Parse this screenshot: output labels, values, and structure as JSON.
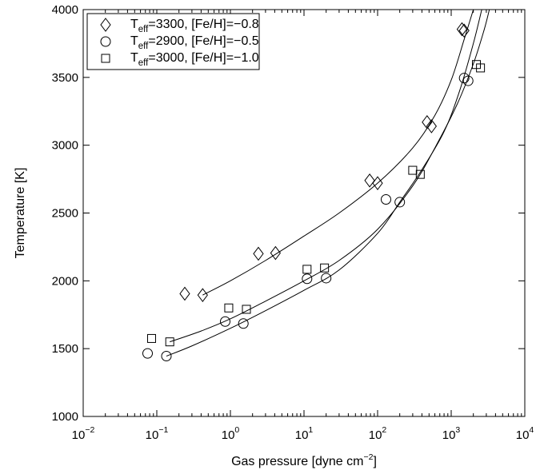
{
  "chart_data": {
    "type": "scatter",
    "xlabel": "Gas pressure [dyne cm−2]",
    "xlabel_parts": {
      "main": "Gas pressure [dyne cm",
      "exponent": "−2",
      "close": "]"
    },
    "ylabel": "Temperature [K]",
    "x_scale": "log",
    "xlim": [
      0.01,
      10000
    ],
    "ylim": [
      1000,
      4000
    ],
    "x_tick_values": [
      0.01,
      0.1,
      1,
      10,
      100,
      1000,
      10000
    ],
    "x_tick_labels": [
      {
        "base": "10",
        "exp": "−2"
      },
      {
        "base": "10",
        "exp": "−1"
      },
      {
        "base": "10",
        "exp": "0"
      },
      {
        "base": "10",
        "exp": "1"
      },
      {
        "base": "10",
        "exp": "2"
      },
      {
        "base": "10",
        "exp": "3"
      },
      {
        "base": "10",
        "exp": "4"
      }
    ],
    "y_ticks": [
      1000,
      1500,
      2000,
      2500,
      3000,
      3500,
      4000
    ],
    "grid": false,
    "legend_position": "top-left",
    "series": [
      {
        "legend": {
          "t": "T",
          "sub": "eff",
          "rest": "=3300, [Fe/H]=−0.8"
        },
        "marker": "diamond",
        "points": [
          [
            0.24,
            1905
          ],
          [
            0.42,
            1895
          ],
          [
            2.4,
            2200
          ],
          [
            4.1,
            2205
          ],
          [
            78,
            2740
          ],
          [
            100,
            2720
          ],
          [
            470,
            3170
          ],
          [
            540,
            3140
          ],
          [
            1400,
            3855
          ],
          [
            1500,
            3845
          ]
        ],
        "curve": [
          [
            0.42,
            1895
          ],
          [
            1,
            2000
          ],
          [
            3,
            2150
          ],
          [
            10,
            2330
          ],
          [
            30,
            2500
          ],
          [
            100,
            2720
          ],
          [
            300,
            2980
          ],
          [
            600,
            3220
          ],
          [
            1000,
            3480
          ],
          [
            1500,
            3780
          ],
          [
            2000,
            4000
          ]
        ]
      },
      {
        "legend": {
          "t": "T",
          "sub": "eff",
          "rest": "=2900, [Fe/H]=−0.5"
        },
        "marker": "circle",
        "points": [
          [
            0.075,
            1465
          ],
          [
            0.135,
            1445
          ],
          [
            0.85,
            1700
          ],
          [
            1.5,
            1685
          ],
          [
            11,
            2015
          ],
          [
            20,
            2020
          ],
          [
            130,
            2600
          ],
          [
            200,
            2580
          ],
          [
            1500,
            3495
          ],
          [
            1700,
            3475
          ]
        ],
        "curve": [
          [
            0.135,
            1445
          ],
          [
            0.3,
            1520
          ],
          [
            1,
            1650
          ],
          [
            3,
            1780
          ],
          [
            10,
            1930
          ],
          [
            30,
            2080
          ],
          [
            100,
            2350
          ],
          [
            200,
            2580
          ],
          [
            400,
            2820
          ],
          [
            800,
            3100
          ],
          [
            1300,
            3400
          ],
          [
            2000,
            3750
          ],
          [
            2600,
            4000
          ]
        ]
      },
      {
        "legend": {
          "t": "T",
          "sub": "eff",
          "rest": "=3000, [Fe/H]=−1.0"
        },
        "marker": "square",
        "points": [
          [
            0.085,
            1575
          ],
          [
            0.15,
            1550
          ],
          [
            0.95,
            1800
          ],
          [
            1.65,
            1790
          ],
          [
            11,
            2085
          ],
          [
            19,
            2095
          ],
          [
            300,
            2815
          ],
          [
            380,
            2785
          ],
          [
            2200,
            3595
          ],
          [
            2500,
            3570
          ]
        ],
        "curve": [
          [
            0.15,
            1550
          ],
          [
            0.4,
            1630
          ],
          [
            1,
            1720
          ],
          [
            3,
            1850
          ],
          [
            10,
            2000
          ],
          [
            30,
            2150
          ],
          [
            100,
            2380
          ],
          [
            300,
            2700
          ],
          [
            600,
            2980
          ],
          [
            1200,
            3300
          ],
          [
            2000,
            3600
          ],
          [
            2800,
            3850
          ],
          [
            3300,
            4000
          ]
        ]
      }
    ]
  }
}
